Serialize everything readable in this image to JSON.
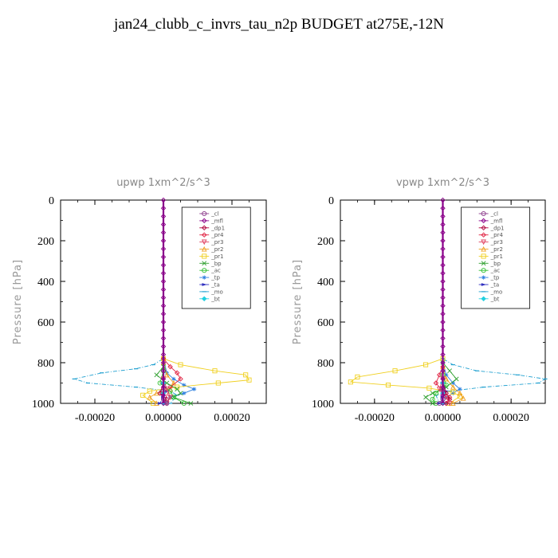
{
  "page": {
    "title": "jan24_clubb_c_invrs_tau_n2p  BUDGET at275E,-12N"
  },
  "legend_items": [
    {
      "label": "_cl",
      "color": "#8a3a8a",
      "marker": "circle"
    },
    {
      "label": "_mfl",
      "color": "#8a008a",
      "marker": "diamond"
    },
    {
      "label": "_dp1",
      "color": "#b0003a",
      "marker": "diamond"
    },
    {
      "label": "_pr4",
      "color": "#e02040",
      "marker": "diamond"
    },
    {
      "label": "_pr3",
      "color": "#e04060",
      "marker": "triangle-down"
    },
    {
      "label": "_pr2",
      "color": "#f0a020",
      "marker": "triangle"
    },
    {
      "label": "_pr1",
      "color": "#f0d020",
      "marker": "square"
    },
    {
      "label": "_bp",
      "color": "#30a030",
      "marker": "x"
    },
    {
      "label": "_ac",
      "color": "#30c030",
      "marker": "circle"
    },
    {
      "label": "_tp",
      "color": "#3080e0",
      "marker": "star"
    },
    {
      "label": "_ta",
      "color": "#3030c0",
      "marker": "arrow"
    },
    {
      "label": "_mo",
      "color": "#20a0d0",
      "marker": "dash"
    },
    {
      "label": "_bt",
      "color": "#20d0e0",
      "marker": "diamond-filled"
    }
  ],
  "chart_data": [
    {
      "type": "line",
      "title": "upwp   1xm^2/s^3",
      "ylabel": "Pressure [hPa]",
      "xlabel": "",
      "xlim": [
        -0.0003,
        0.0003
      ],
      "ylim": [
        1000,
        0
      ],
      "xticks": [
        -0.0002,
        0.0,
        0.0002
      ],
      "xtick_labels": [
        "-0.00020",
        "0.00000",
        "0.00020"
      ],
      "yticks": [
        0,
        200,
        400,
        600,
        800,
        1000
      ],
      "ytick_labels": [
        "0",
        "200",
        "400",
        "600",
        "800",
        "1000"
      ],
      "legend_position": "top-right",
      "series": [
        {
          "name": "_mo",
          "x": [
            0,
            0,
            -3e-05,
            -8e-05,
            -0.00018,
            -0.00026,
            -0.00022,
            -8e-05,
            2e-05,
            4e-05,
            2e-05
          ],
          "y": [
            0,
            780,
            810,
            830,
            850,
            880,
            900,
            920,
            940,
            960,
            1000
          ]
        },
        {
          "name": "_tp",
          "x": [
            0,
            0,
            1e-05,
            3e-05,
            6e-05,
            9e-05,
            6e-05,
            2e-05,
            1e-05
          ],
          "y": [
            0,
            780,
            850,
            880,
            910,
            930,
            950,
            970,
            1000
          ]
        },
        {
          "name": "_pr1",
          "x": [
            0,
            0,
            5e-05,
            0.00015,
            0.00024,
            0.00025,
            0.00016,
            4e-05,
            -4e-05,
            -6e-05,
            -3e-05
          ],
          "y": [
            0,
            780,
            810,
            840,
            860,
            885,
            900,
            920,
            940,
            960,
            1000
          ]
        },
        {
          "name": "_pr2",
          "x": [
            0,
            0,
            1e-05,
            3e-05,
            2e-05,
            -2e-05,
            -4e-05,
            -2e-05
          ],
          "y": [
            0,
            800,
            860,
            900,
            930,
            950,
            970,
            1000
          ]
        },
        {
          "name": "_pr4",
          "x": [
            0,
            0,
            2e-05,
            4e-05,
            5e-05,
            2e-05,
            0.0
          ],
          "y": [
            0,
            780,
            820,
            850,
            880,
            920,
            1000
          ]
        },
        {
          "name": "_bp",
          "x": [
            0,
            0,
            -2e-05,
            1e-05,
            4e-05,
            5e-05,
            3e-05,
            8e-05
          ],
          "y": [
            0,
            820,
            860,
            900,
            930,
            950,
            970,
            1000
          ]
        },
        {
          "name": "_ac",
          "x": [
            0,
            0,
            -1e-05,
            2e-05,
            3e-05,
            6e-05
          ],
          "y": [
            0,
            840,
            900,
            940,
            970,
            1000
          ]
        },
        {
          "name": "_ta",
          "x": [
            0,
            0,
            1e-05,
            0.0,
            -1e-05
          ],
          "y": [
            0,
            900,
            940,
            970,
            1000
          ]
        },
        {
          "name": "_dp1",
          "x": [
            0,
            0,
            -1e-05,
            1e-05,
            0.0
          ],
          "y": [
            0,
            900,
            950,
            980,
            1000
          ]
        },
        {
          "name": "_pr3",
          "x": [
            0,
            0,
            1e-05,
            2e-05,
            1e-05
          ],
          "y": [
            0,
            880,
            930,
            970,
            1000
          ]
        },
        {
          "name": "_cl",
          "x": [
            0,
            0,
            0.0,
            1e-05
          ],
          "y": [
            0,
            940,
            980,
            1000
          ]
        },
        {
          "name": "_bt",
          "x": [
            0,
            0,
            0.0,
            0.0
          ],
          "y": [
            0,
            900,
            950,
            1000
          ]
        },
        {
          "name": "_mfl",
          "x": [
            0,
            0,
            0,
            0,
            0,
            0,
            0,
            0,
            0,
            0,
            0,
            0,
            0,
            0,
            0,
            0,
            0,
            0,
            0,
            0,
            0,
            0,
            0,
            0,
            0,
            0
          ],
          "y": [
            0,
            40,
            80,
            120,
            160,
            200,
            240,
            280,
            320,
            360,
            400,
            440,
            480,
            520,
            560,
            600,
            640,
            680,
            720,
            760,
            800,
            840,
            880,
            920,
            960,
            1000
          ]
        }
      ]
    },
    {
      "type": "line",
      "title": "vpwp   1xm^2/s^3",
      "ylabel": "Pressure [hPa]",
      "xlabel": "",
      "xlim": [
        -0.0003,
        0.0003
      ],
      "ylim": [
        1000,
        0
      ],
      "xticks": [
        -0.0002,
        0.0,
        0.0002
      ],
      "xtick_labels": [
        "-0.00020",
        "0.00000",
        "0.00020"
      ],
      "yticks": [
        0,
        200,
        400,
        600,
        800,
        1000
      ],
      "ytick_labels": [
        "0",
        "200",
        "400",
        "600",
        "800",
        "1000"
      ],
      "legend_position": "top-right",
      "series": [
        {
          "name": "_mo",
          "x": [
            0,
            0,
            3e-05,
            0.0001,
            0.00022,
            0.0003,
            0.00028,
            0.00012,
            2e-05,
            -2e-05,
            -1e-05
          ],
          "y": [
            0,
            780,
            810,
            840,
            860,
            880,
            900,
            920,
            940,
            960,
            1000
          ]
        },
        {
          "name": "_tp",
          "x": [
            0,
            0,
            1e-05,
            3e-05,
            5e-05,
            3e-05,
            1e-05,
            0.0
          ],
          "y": [
            0,
            800,
            860,
            900,
            930,
            950,
            970,
            1000
          ]
        },
        {
          "name": "_pr1",
          "x": [
            0,
            0,
            -5e-05,
            -0.00014,
            -0.00025,
            -0.00027,
            -0.00016,
            -4e-05,
            3e-05,
            5e-05,
            2e-05
          ],
          "y": [
            0,
            780,
            810,
            840,
            870,
            895,
            910,
            925,
            945,
            965,
            1000
          ]
        },
        {
          "name": "_pr2",
          "x": [
            0,
            0,
            1e-05,
            3e-05,
            5e-05,
            6e-05,
            3e-05
          ],
          "y": [
            0,
            820,
            880,
            920,
            950,
            975,
            1000
          ]
        },
        {
          "name": "_pr4",
          "x": [
            0,
            0,
            -1e-05,
            -2e-05,
            0.0,
            2e-05,
            1e-05
          ],
          "y": [
            0,
            820,
            860,
            900,
            940,
            970,
            1000
          ]
        },
        {
          "name": "_bp",
          "x": [
            0,
            0,
            2e-05,
            4e-05,
            1e-05,
            -3e-05,
            -5e-05,
            -3e-05
          ],
          "y": [
            0,
            800,
            840,
            880,
            920,
            950,
            970,
            1000
          ]
        },
        {
          "name": "_ac",
          "x": [
            0,
            0,
            1e-05,
            -2e-05,
            -3e-05,
            -2e-05
          ],
          "y": [
            0,
            860,
            910,
            950,
            980,
            1000
          ]
        },
        {
          "name": "_ta",
          "x": [
            0,
            0,
            1e-05,
            0.0,
            -1e-05
          ],
          "y": [
            0,
            900,
            940,
            970,
            1000
          ]
        },
        {
          "name": "_dp1",
          "x": [
            0,
            0,
            1e-05,
            2e-05,
            1e-05
          ],
          "y": [
            0,
            900,
            950,
            980,
            1000
          ]
        },
        {
          "name": "_pr3",
          "x": [
            0,
            0,
            -1e-05,
            1e-05,
            2e-05
          ],
          "y": [
            0,
            880,
            930,
            970,
            1000
          ]
        },
        {
          "name": "_cl",
          "x": [
            0,
            0,
            0.0,
            -1e-05
          ],
          "y": [
            0,
            940,
            980,
            1000
          ]
        },
        {
          "name": "_bt",
          "x": [
            0,
            0,
            0.0,
            0.0
          ],
          "y": [
            0,
            900,
            950,
            1000
          ]
        },
        {
          "name": "_mfl",
          "x": [
            0,
            0,
            0,
            0,
            0,
            0,
            0,
            0,
            0,
            0,
            0,
            0,
            0,
            0,
            0,
            0,
            0,
            0,
            0,
            0,
            0,
            0,
            0,
            0,
            0,
            0
          ],
          "y": [
            0,
            40,
            80,
            120,
            160,
            200,
            240,
            280,
            320,
            360,
            400,
            440,
            480,
            520,
            560,
            600,
            640,
            680,
            720,
            760,
            800,
            840,
            880,
            920,
            960,
            1000
          ]
        }
      ]
    }
  ]
}
